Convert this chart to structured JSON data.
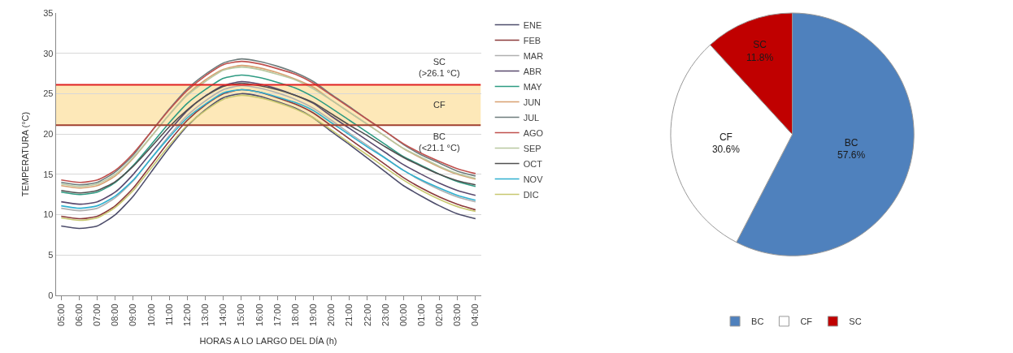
{
  "chart_data": [
    {
      "type": "line",
      "xlabel": "HORAS A LO LARGO DEL DÍA (h)",
      "ylabel": "TEMPERATURA (°C)",
      "categories": [
        "05:00",
        "06:00",
        "07:00",
        "08:00",
        "09:00",
        "10:00",
        "11:00",
        "12:00",
        "13:00",
        "14:00",
        "15:00",
        "16:00",
        "17:00",
        "18:00",
        "19:00",
        "20:00",
        "21:00",
        "22:00",
        "23:00",
        "00:00",
        "01:00",
        "02:00",
        "03:00",
        "04:00"
      ],
      "series": [
        {
          "name": "ENE",
          "color": "#4d4d6b",
          "values": [
            8.6,
            8.3,
            8.6,
            10.0,
            12.3,
            15.3,
            18.3,
            21.0,
            23.0,
            24.5,
            25.0,
            24.7,
            24.0,
            23.2,
            22.0,
            20.3,
            18.7,
            17.0,
            15.3,
            13.6,
            12.3,
            11.1,
            10.1,
            9.5
          ]
        },
        {
          "name": "FEB",
          "color": "#8b3a3a",
          "values": [
            9.8,
            9.5,
            9.8,
            11.1,
            13.3,
            16.2,
            19.1,
            21.7,
            23.6,
            25.0,
            25.5,
            25.2,
            24.5,
            23.7,
            22.6,
            21.0,
            19.4,
            17.8,
            16.2,
            14.6,
            13.3,
            12.2,
            11.3,
            10.6
          ]
        },
        {
          "name": "MAR",
          "color": "#b0b0b0",
          "values": [
            10.8,
            10.5,
            10.8,
            12.1,
            14.2,
            17.0,
            19.8,
            22.3,
            24.1,
            25.5,
            26.0,
            25.7,
            25.1,
            24.3,
            23.2,
            21.7,
            20.1,
            18.6,
            17.0,
            15.5,
            14.2,
            13.1,
            12.2,
            11.6
          ]
        },
        {
          "name": "ABR",
          "color": "#5a4a6e",
          "values": [
            11.6,
            11.3,
            11.6,
            12.8,
            15.0,
            17.7,
            20.4,
            22.9,
            24.7,
            26.0,
            26.5,
            26.2,
            25.6,
            24.8,
            23.8,
            22.2,
            20.7,
            19.2,
            17.7,
            16.2,
            15.0,
            13.9,
            13.0,
            12.4
          ]
        },
        {
          "name": "MAY",
          "color": "#2e9b82",
          "values": [
            12.8,
            12.5,
            12.8,
            14.0,
            16.1,
            18.7,
            21.4,
            23.8,
            25.5,
            26.9,
            27.3,
            27.0,
            26.4,
            25.7,
            24.6,
            23.2,
            21.7,
            20.2,
            18.7,
            17.2,
            16.1,
            15.0,
            14.1,
            13.5
          ]
        },
        {
          "name": "JUN",
          "color": "#d8a070",
          "values": [
            13.6,
            13.3,
            13.6,
            14.8,
            17.0,
            19.7,
            22.4,
            24.9,
            26.7,
            28.0,
            28.5,
            28.2,
            27.6,
            26.8,
            25.8,
            24.2,
            22.7,
            21.2,
            19.7,
            18.2,
            17.0,
            15.9,
            15.0,
            14.4
          ]
        },
        {
          "name": "JUL",
          "color": "#6e7c7c",
          "values": [
            14.0,
            13.7,
            14.0,
            15.3,
            17.4,
            20.3,
            23.1,
            25.6,
            27.4,
            28.8,
            29.3,
            29.0,
            28.4,
            27.6,
            26.5,
            24.9,
            23.4,
            21.8,
            20.3,
            18.7,
            17.4,
            16.4,
            15.4,
            14.8
          ]
        },
        {
          "name": "AGO",
          "color": "#c0504d",
          "values": [
            14.3,
            14.0,
            14.3,
            15.5,
            17.6,
            20.3,
            23.0,
            25.4,
            27.2,
            28.6,
            29.0,
            28.7,
            28.1,
            27.4,
            26.3,
            24.8,
            23.3,
            21.8,
            20.3,
            18.8,
            17.6,
            16.6,
            15.7,
            15.1
          ]
        },
        {
          "name": "SEP",
          "color": "#b8c8a0",
          "values": [
            13.8,
            13.5,
            13.8,
            15.0,
            17.1,
            19.7,
            22.4,
            24.8,
            26.5,
            27.9,
            28.3,
            28.0,
            27.4,
            26.7,
            25.6,
            24.2,
            22.7,
            21.2,
            19.7,
            18.2,
            17.1,
            16.0,
            15.1,
            14.5
          ]
        },
        {
          "name": "OCT",
          "color": "#505050",
          "values": [
            13.0,
            12.7,
            13.0,
            14.1,
            16.0,
            18.4,
            20.9,
            23.0,
            24.7,
            25.9,
            26.3,
            26.0,
            25.5,
            24.8,
            23.9,
            22.5,
            21.1,
            19.8,
            18.4,
            17.1,
            16.0,
            15.0,
            14.2,
            13.7
          ]
        },
        {
          "name": "NOV",
          "color": "#30b0d0",
          "values": [
            11.1,
            10.8,
            11.1,
            12.3,
            14.3,
            17.0,
            19.6,
            22.0,
            23.7,
            25.1,
            25.5,
            25.2,
            24.6,
            23.9,
            22.9,
            21.4,
            19.9,
            18.4,
            17.0,
            15.5,
            14.3,
            13.3,
            12.4,
            11.8
          ]
        },
        {
          "name": "DIC",
          "color": "#c8c870",
          "values": [
            9.6,
            9.3,
            9.6,
            10.9,
            13.0,
            15.8,
            18.6,
            21.1,
            22.9,
            24.3,
            24.8,
            24.5,
            23.9,
            23.1,
            22.0,
            20.5,
            18.9,
            17.4,
            15.8,
            14.3,
            13.0,
            11.9,
            11.0,
            10.4
          ]
        }
      ],
      "ylim": [
        0,
        35
      ],
      "yticks": [
        0,
        5,
        10,
        15,
        20,
        25,
        30,
        35
      ],
      "grid": "y",
      "legend": "right",
      "marker": "none",
      "line_style": "solid",
      "ref_lines": [
        {
          "axis": "y",
          "value": 26.1,
          "label": "SC\n(>26.1 °C)",
          "color": "#e02020"
        },
        {
          "axis": "y",
          "value": 21.1,
          "label": "BC\n(<21.1 °C)",
          "color": "#a04030"
        }
      ],
      "bands": [
        {
          "axis": "y",
          "from": 21.1,
          "to": 26.1,
          "label": "CF",
          "color": "#fde8b8"
        }
      ]
    },
    {
      "type": "pie",
      "categories": [
        "BC",
        "CF",
        "SC"
      ],
      "values": [
        57.6,
        30.6,
        11.8
      ],
      "colors": [
        "#4f81bd",
        "#ffffff",
        "#c00000"
      ],
      "value_labels": [
        "57.6%",
        "30.6%",
        "11.8%"
      ],
      "legend": "bottom"
    }
  ]
}
